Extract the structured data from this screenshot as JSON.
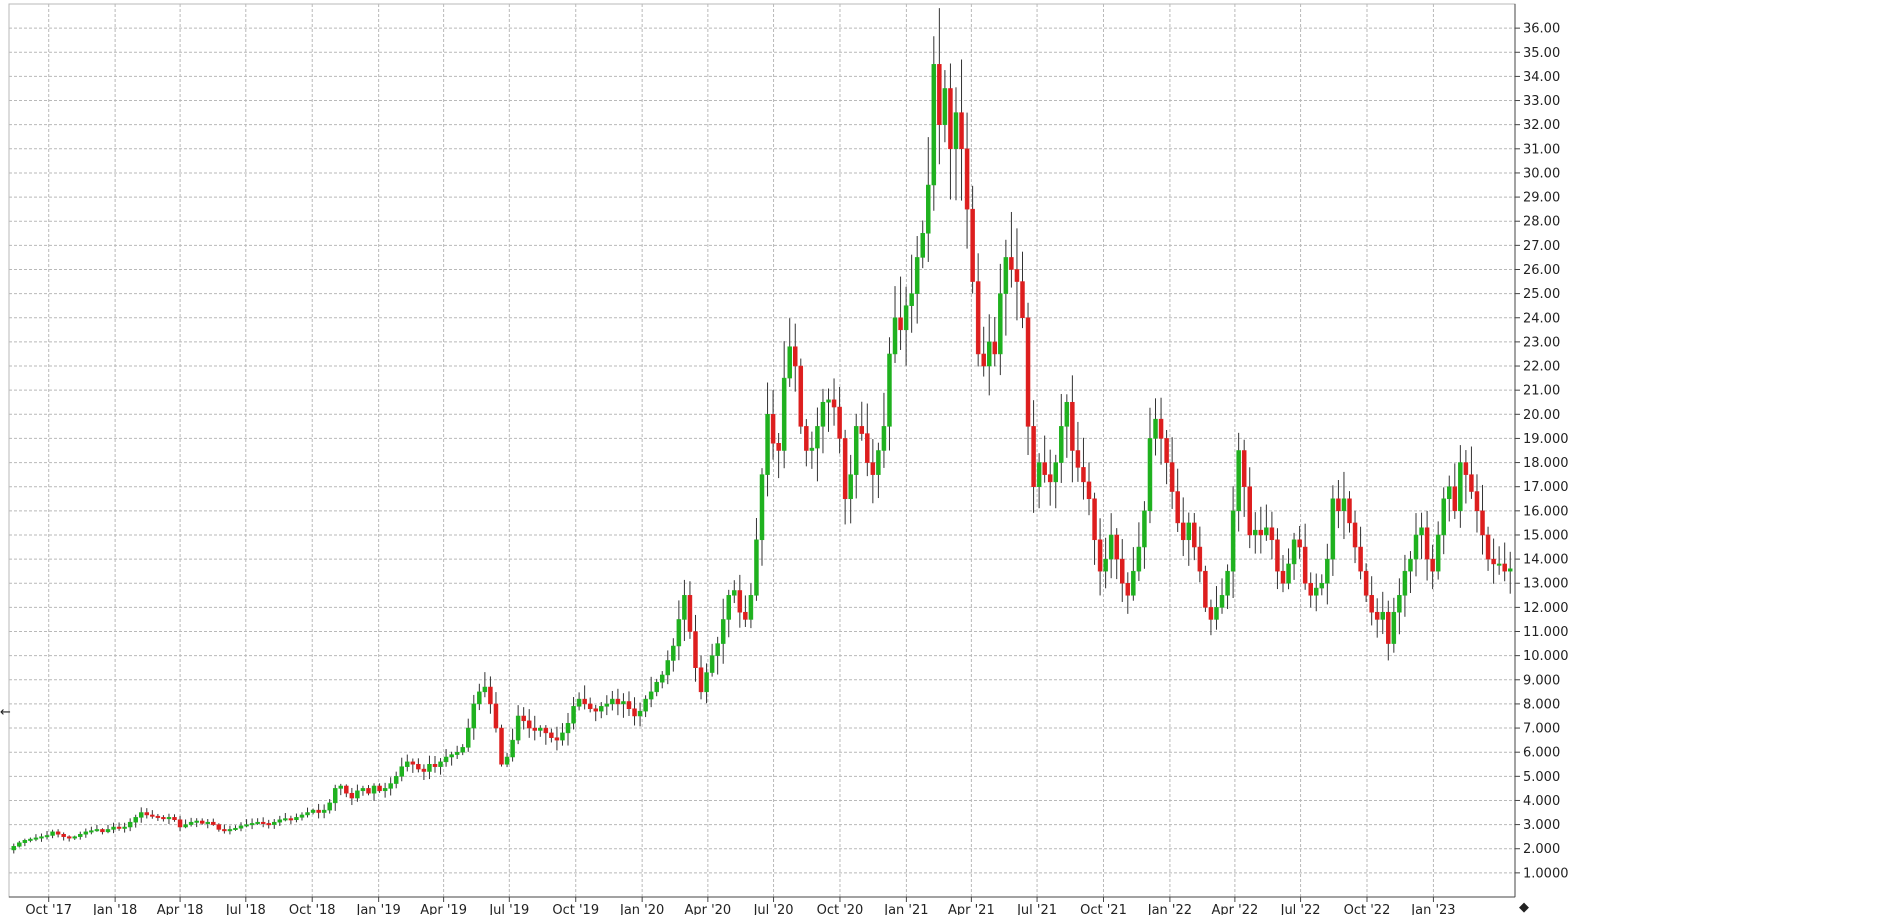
{
  "chart_data": {
    "type": "candlestick",
    "title": "",
    "xlabel": "",
    "ylabel": "",
    "ylim": [
      0,
      37
    ],
    "y_ticks": [
      "1.0000",
      "2.000",
      "3.000",
      "4.000",
      "5.000",
      "6.000",
      "7.000",
      "8.000",
      "9.000",
      "10.000",
      "11.000",
      "12.000",
      "13.000",
      "14.000",
      "15.000",
      "16.000",
      "17.000",
      "18.000",
      "19.000",
      "20.00",
      "21.00",
      "22.00",
      "23.00",
      "24.00",
      "25.00",
      "26.00",
      "27.00",
      "28.00",
      "29.00",
      "30.00",
      "31.00",
      "32.00",
      "33.00",
      "34.00",
      "35.00",
      "36.00"
    ],
    "x_range": [
      "2017-08-07",
      "2023-04-24"
    ],
    "x_ticks": [
      {
        "date": "2017-10-01",
        "label": "Oct '17"
      },
      {
        "date": "2018-01-01",
        "label": "Jan '18"
      },
      {
        "date": "2018-04-01",
        "label": "Apr '18"
      },
      {
        "date": "2018-07-01",
        "label": "Jul '18"
      },
      {
        "date": "2018-10-01",
        "label": "Oct '18"
      },
      {
        "date": "2019-01-01",
        "label": "Jan '19"
      },
      {
        "date": "2019-04-01",
        "label": "Apr '19"
      },
      {
        "date": "2019-07-01",
        "label": "Jul '19"
      },
      {
        "date": "2019-10-01",
        "label": "Oct '19"
      },
      {
        "date": "2020-01-01",
        "label": "Jan '20"
      },
      {
        "date": "2020-04-01",
        "label": "Apr '20"
      },
      {
        "date": "2020-07-01",
        "label": "Jul '20"
      },
      {
        "date": "2020-10-01",
        "label": "Oct '20"
      },
      {
        "date": "2021-01-01",
        "label": "Jan '21"
      },
      {
        "date": "2021-04-01",
        "label": "Apr '21"
      },
      {
        "date": "2021-07-01",
        "label": "Jul '21"
      },
      {
        "date": "2021-10-01",
        "label": "Oct '21"
      },
      {
        "date": "2022-01-01",
        "label": "Jan '22"
      },
      {
        "date": "2022-04-01",
        "label": "Apr '22"
      },
      {
        "date": "2022-07-01",
        "label": "Jul '22"
      },
      {
        "date": "2022-10-01",
        "label": "Oct '22"
      },
      {
        "date": "2023-01-01",
        "label": "Jan '23"
      }
    ],
    "grid": true,
    "colors": {
      "up": "#1fb11f",
      "down": "#dd1e1e",
      "wick": "#333333"
    },
    "weekly_close": [
      2.1,
      2.25,
      2.35,
      2.4,
      2.45,
      2.5,
      2.55,
      2.7,
      2.6,
      2.5,
      2.45,
      2.5,
      2.6,
      2.7,
      2.75,
      2.8,
      2.7,
      2.8,
      2.9,
      2.85,
      2.9,
      3.1,
      3.3,
      3.5,
      3.4,
      3.35,
      3.3,
      3.25,
      3.3,
      3.2,
      2.9,
      3.0,
      3.1,
      3.15,
      3.05,
      3.1,
      3.0,
      2.8,
      2.75,
      2.8,
      2.85,
      2.95,
      3.0,
      3.05,
      3.1,
      3.05,
      3.0,
      3.1,
      3.2,
      3.25,
      3.2,
      3.3,
      3.4,
      3.5,
      3.6,
      3.5,
      3.6,
      3.9,
      4.5,
      4.6,
      4.3,
      4.1,
      4.4,
      4.5,
      4.3,
      4.6,
      4.4,
      4.5,
      4.7,
      5.0,
      5.4,
      5.6,
      5.5,
      5.3,
      5.2,
      5.5,
      5.4,
      5.6,
      5.8,
      5.9,
      6.0,
      6.2,
      7.0,
      8.0,
      8.5,
      8.7,
      8.0,
      7.0,
      5.5,
      5.8,
      6.5,
      7.5,
      7.3,
      7.0,
      6.9,
      7.0,
      6.8,
      6.6,
      6.5,
      6.8,
      7.2,
      7.9,
      8.2,
      8.0,
      7.8,
      7.7,
      7.9,
      8.0,
      8.2,
      8.0,
      8.1,
      7.8,
      7.5,
      7.7,
      8.2,
      8.5,
      8.9,
      9.2,
      9.8,
      10.4,
      11.5,
      12.5,
      11.0,
      9.5,
      8.5,
      9.3,
      10.0,
      10.5,
      11.5,
      12.5,
      12.7,
      11.8,
      11.5,
      12.5,
      14.8,
      17.5,
      20.0,
      18.8,
      18.5,
      21.5,
      22.8,
      22.0,
      19.5,
      18.5,
      18.6,
      19.5,
      20.5,
      20.6,
      20.3,
      19.0,
      16.5,
      17.5,
      19.5,
      19.2,
      18.0,
      17.5,
      18.5,
      19.5,
      22.5,
      24.0,
      23.5,
      24.5,
      25.0,
      26.5,
      27.5,
      29.5,
      34.5,
      32.0,
      33.5,
      31.0,
      32.5,
      31.0,
      28.5,
      25.5,
      22.5,
      22.0,
      23.0,
      22.5,
      25.0,
      26.5,
      26.0,
      25.5,
      24.0,
      19.5,
      17.0,
      18.0,
      17.5,
      17.2,
      18.0,
      19.5,
      20.5,
      18.5,
      17.8,
      17.2,
      16.5,
      14.8,
      13.5,
      14.0,
      15.0,
      14.0,
      13.0,
      12.5,
      13.5,
      14.5,
      16.0,
      19.0,
      19.8,
      19.0,
      18.0,
      16.8,
      15.5,
      14.8,
      15.5,
      14.5,
      13.5,
      12.0,
      11.5,
      12.0,
      12.5,
      13.5,
      16.0,
      18.5,
      17.0,
      15.0,
      15.2,
      15.0,
      15.3,
      14.8,
      13.5,
      13.0,
      13.8,
      14.8,
      14.5,
      13.0,
      12.5,
      12.8,
      13.0,
      14.0,
      16.5,
      16.0,
      16.5,
      15.5,
      14.5,
      13.5,
      12.5,
      11.8,
      11.5,
      11.8,
      10.5,
      11.8,
      12.5,
      13.5,
      14.0,
      15.0,
      15.3,
      14.0,
      13.5,
      15.0,
      16.5,
      17.0,
      16.0,
      18.0,
      17.5,
      16.8,
      16.0,
      15.0,
      14.0,
      13.8,
      13.8,
      13.5,
      13.6
    ]
  },
  "icons": {
    "left_edge_marker": "left-arrow-icon",
    "bottom_right_marker": "diamond-icon"
  }
}
